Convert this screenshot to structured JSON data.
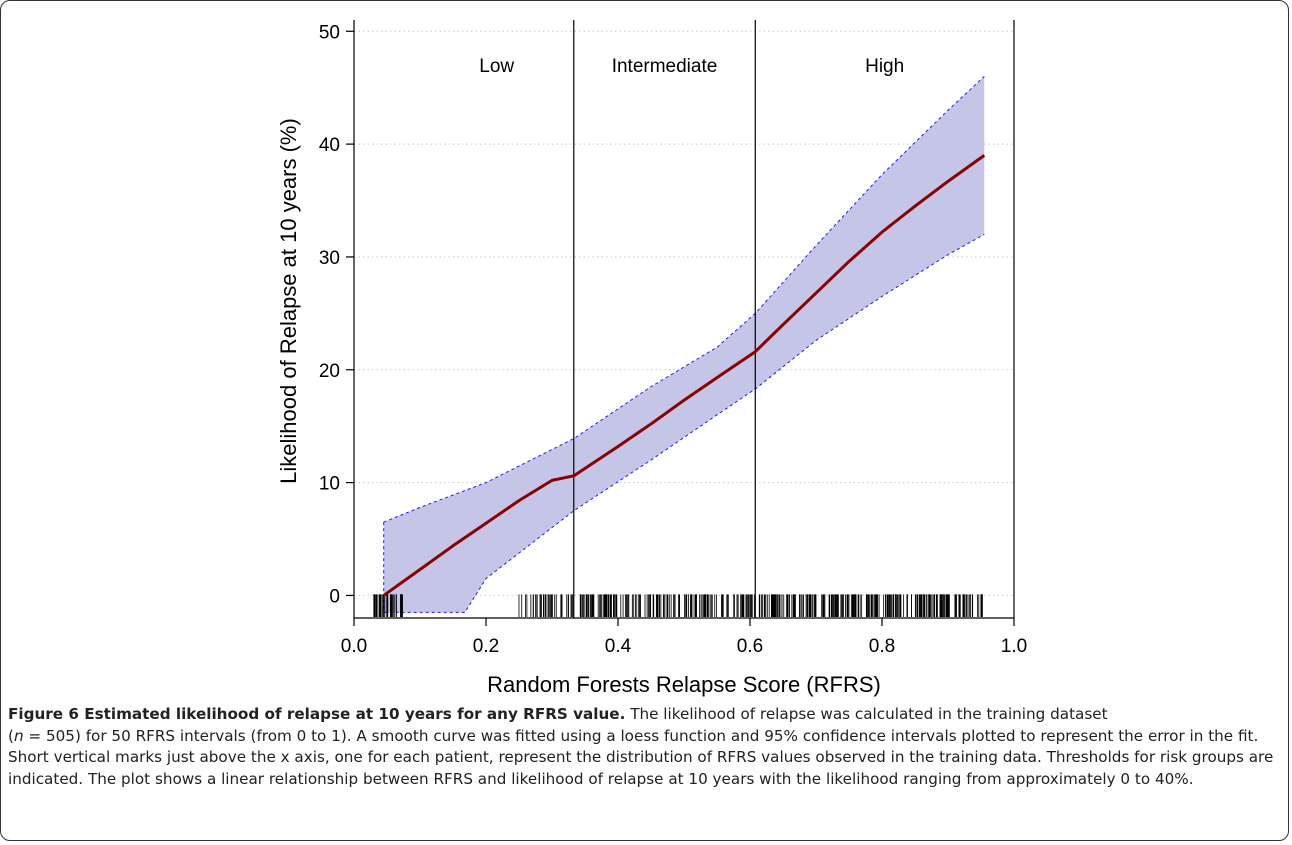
{
  "colors": {
    "curve": "#8b0000",
    "ci_fill": "#c5c5e8",
    "ci_border": "#1a1aff",
    "threshold": "#000000",
    "rug": "#000000",
    "grid": "#c8c8c8"
  },
  "chart_data": {
    "type": "line",
    "title": "",
    "xlabel": "Random Forests Relapse Score (RFRS)",
    "ylabel": "Likelihood of Relapse at 10 years (%)",
    "xlim": [
      0.0,
      1.0
    ],
    "ylim": [
      -2,
      51
    ],
    "xticks": [
      0.0,
      0.2,
      0.4,
      0.6,
      0.8,
      1.0
    ],
    "xtick_labels": [
      "0.0",
      "0.2",
      "0.4",
      "0.6",
      "0.8",
      "1.0"
    ],
    "yticks": [
      0,
      10,
      20,
      30,
      40,
      50
    ],
    "ytick_labels": [
      "0",
      "10",
      "20",
      "30",
      "40",
      "50"
    ],
    "grid": "horizontal dotted",
    "series": [
      {
        "role": "loess fit",
        "x": [
          0.045,
          0.1,
          0.15,
          0.2,
          0.25,
          0.3,
          0.333,
          0.4,
          0.45,
          0.5,
          0.55,
          0.608,
          0.65,
          0.7,
          0.75,
          0.8,
          0.85,
          0.9,
          0.955
        ],
        "y": [
          0,
          2.3,
          4.4,
          6.4,
          8.4,
          10.2,
          10.6,
          13.2,
          15.2,
          17.3,
          19.3,
          21.6,
          24.0,
          26.8,
          29.6,
          32.2,
          34.5,
          36.7,
          39.0
        ]
      },
      {
        "role": "95% CI upper",
        "x": [
          0.045,
          0.1,
          0.2,
          0.333,
          0.45,
          0.55,
          0.608,
          0.7,
          0.8,
          0.9,
          0.955
        ],
        "y": [
          6.5,
          7.8,
          10.0,
          13.9,
          18.5,
          22.0,
          25.0,
          31.0,
          37.3,
          43.0,
          46.0
        ]
      },
      {
        "role": "95% CI lower",
        "x": [
          0.045,
          0.1,
          0.168,
          0.2,
          0.333,
          0.45,
          0.55,
          0.608,
          0.7,
          0.8,
          0.9,
          0.955
        ],
        "y": [
          -1.5,
          -1.5,
          -1.5,
          1.5,
          7.5,
          12.0,
          16.0,
          18.3,
          22.6,
          26.5,
          30.2,
          32.0
        ]
      }
    ],
    "thresholds": [
      0.333,
      0.608
    ],
    "regions": [
      "Low",
      "Intermediate",
      "High"
    ],
    "rug_range": [
      0.03,
      0.955
    ]
  },
  "caption": {
    "title": "Figure 6 Estimated likelihood of relapse at 10 years for any RFRS value.",
    "p1": " The likelihood of relapse was calculated in the training dataset",
    "n_label": "n",
    "p2": " = 505) for 50 RFRS intervals (from 0 to 1). A smooth curve was fitted using a loess function and 95% confidence intervals plotted to represent the error in the fit. Short vertical marks just above the x axis, one for each patient, represent the distribution of RFRS values observed in the training data. Thresholds for risk groups are indicated. The plot shows a linear relationship between RFRS and likelihood of relapse at 10 years with the likelihood ranging from approximately 0 to 40%."
  }
}
